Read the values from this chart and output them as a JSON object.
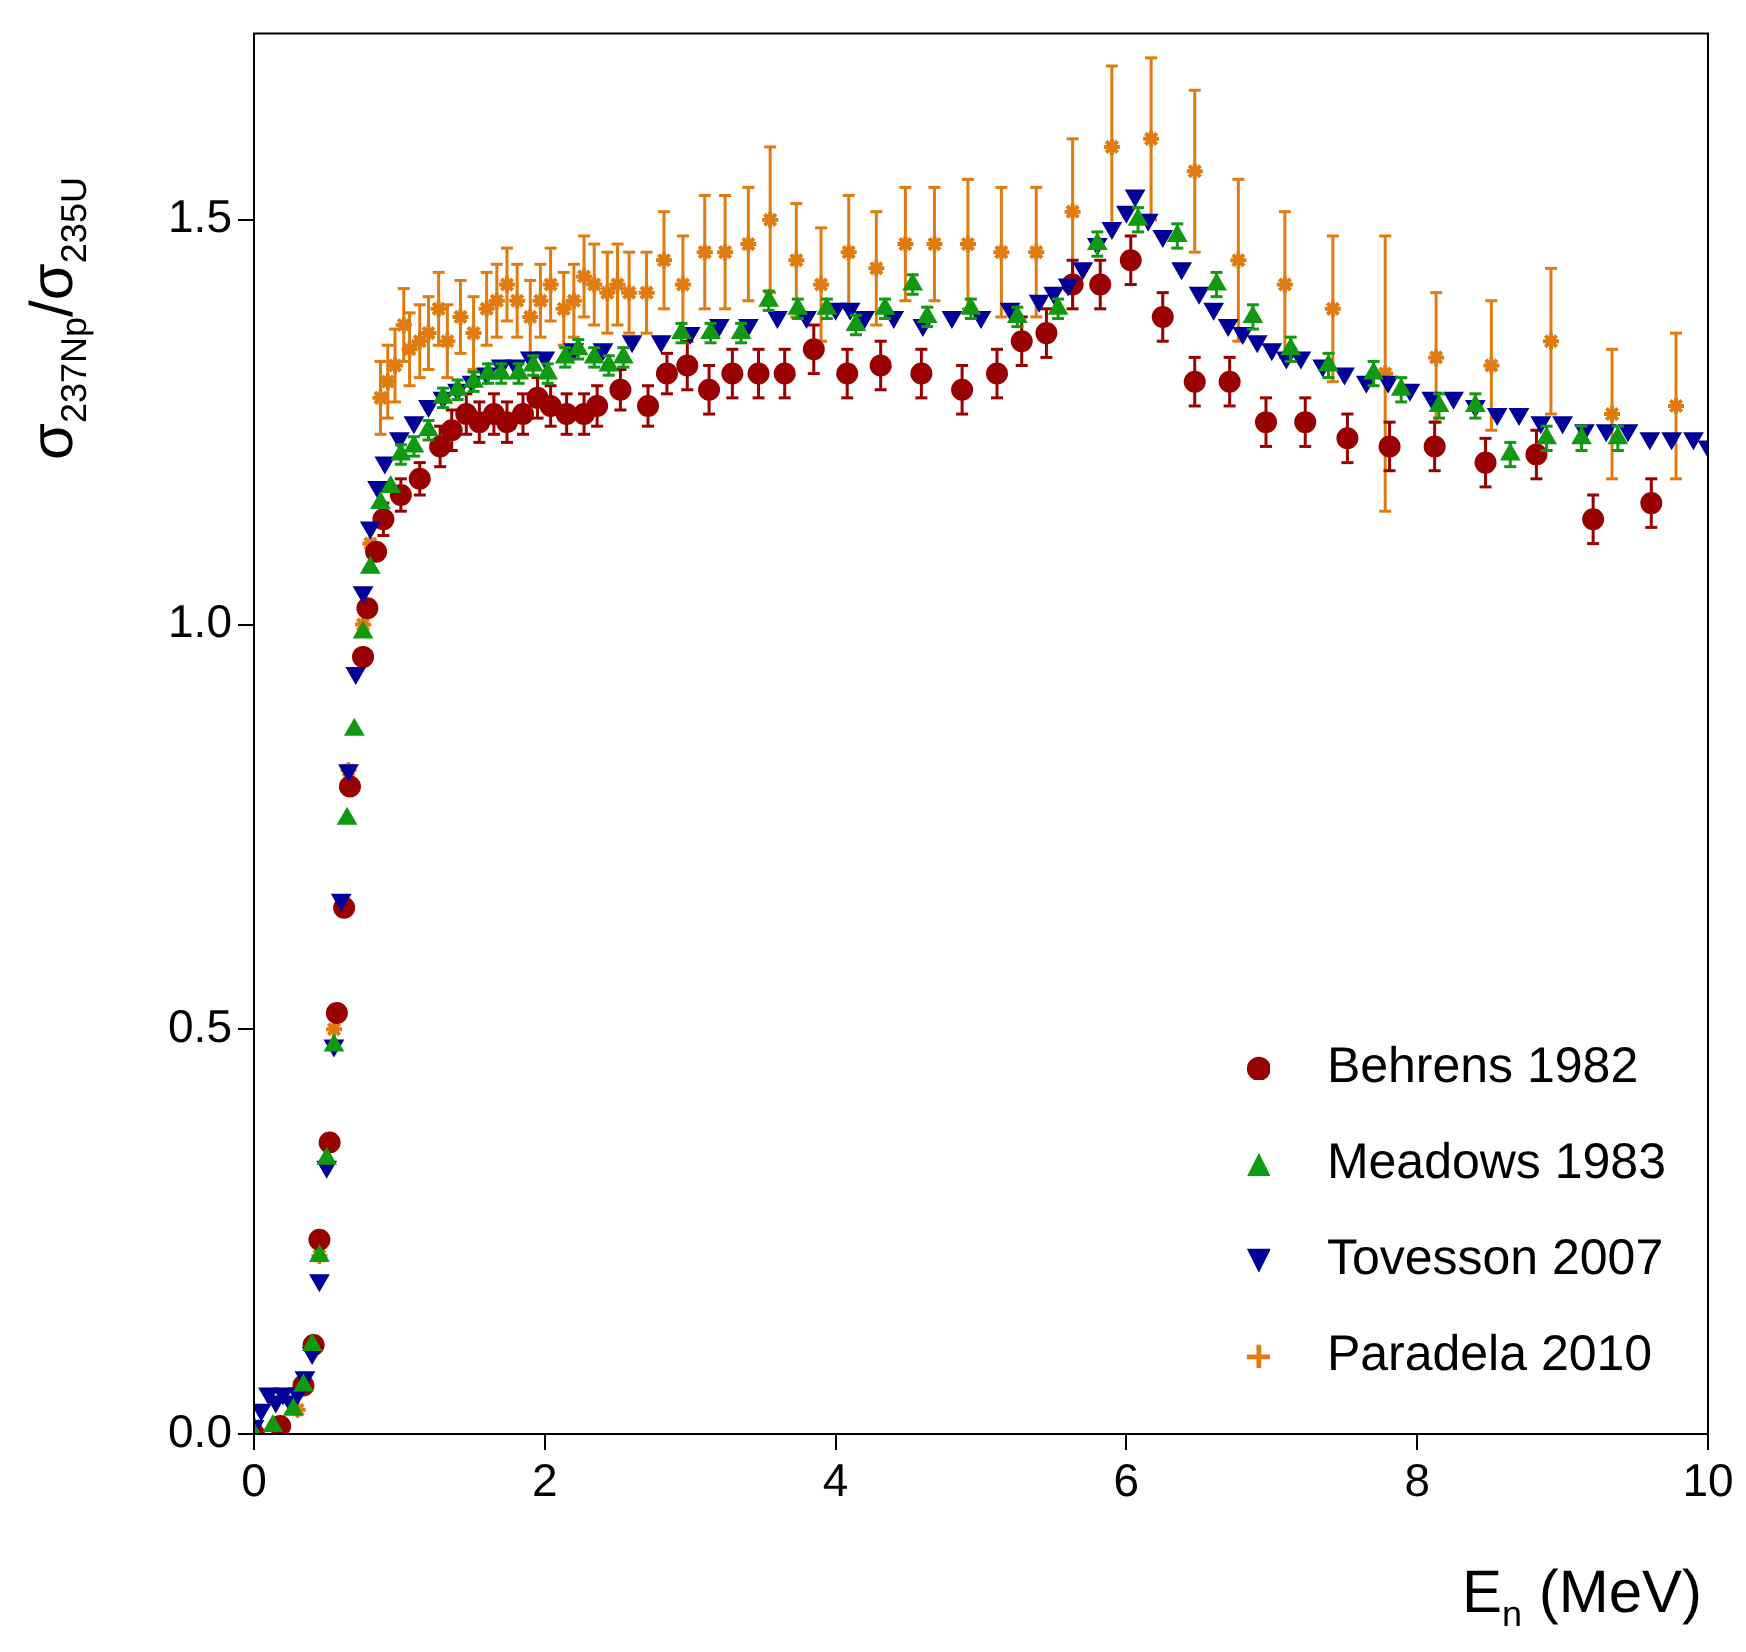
{
  "chart_data": {
    "type": "scatter",
    "xlabel": "E$_{n}$ (MeV)",
    "ylabel": "σ$_{237Np}$/σ$_{235U}$",
    "xlim": [
      0,
      10
    ],
    "xticks": [
      0,
      2,
      4,
      6,
      8,
      10
    ],
    "ylim": [
      0,
      1.73
    ],
    "yticks": [
      {
        "value": 0,
        "label": "0.0"
      },
      {
        "value": 0.5,
        "label": "0.5"
      },
      {
        "value": 1,
        "label": "1.0"
      },
      {
        "value": 1.5,
        "label": "1.5"
      }
    ],
    "grid": false,
    "legend": "bottom right",
    "series": [
      {
        "name": "Behrens 1982",
        "color": "#990000",
        "marker": "circle",
        "x": [
          0,
          0.18,
          0.34,
          0.41,
          0.45,
          0.52,
          0.57,
          0.62,
          0.66,
          0.75,
          0.78,
          0.84,
          0.89,
          1.01,
          1.14,
          1.28,
          1.36,
          1.46,
          1.55,
          1.65,
          1.74,
          1.85,
          1.95,
          2.04,
          2.15,
          2.27,
          2.36,
          2.52,
          2.71,
          2.84,
          2.98,
          3.13,
          3.29,
          3.47,
          3.65,
          3.85,
          4.08,
          4.31,
          4.59,
          4.87,
          5.11,
          5.28,
          5.45,
          5.63,
          5.82,
          6.03,
          6.25,
          6.47,
          6.71,
          6.96,
          7.23,
          7.52,
          7.81,
          8.12,
          8.47,
          8.82,
          9.21,
          9.61
        ],
        "values": [
          0,
          0.01,
          0.06,
          0.11,
          0.24,
          0.36,
          0.52,
          0.65,
          0.8,
          0.96,
          1.02,
          1.09,
          1.13,
          1.16,
          1.18,
          1.22,
          1.24,
          1.26,
          1.25,
          1.26,
          1.25,
          1.26,
          1.28,
          1.27,
          1.26,
          1.26,
          1.27,
          1.29,
          1.27,
          1.31,
          1.32,
          1.29,
          1.31,
          1.31,
          1.31,
          1.34,
          1.31,
          1.32,
          1.31,
          1.29,
          1.31,
          1.35,
          1.36,
          1.42,
          1.42,
          1.45,
          1.38,
          1.3,
          1.3,
          1.25,
          1.25,
          1.23,
          1.22,
          1.22,
          1.2,
          1.21,
          1.13,
          1.15
        ],
        "errors": [
          null,
          null,
          null,
          null,
          null,
          null,
          null,
          null,
          null,
          null,
          null,
          null,
          0.02,
          0.02,
          0.02,
          0.025,
          0.025,
          0.025,
          0.025,
          0.025,
          0.025,
          0.025,
          0.025,
          0.025,
          0.025,
          0.025,
          0.025,
          0.025,
          0.025,
          0.025,
          0.03,
          0.03,
          0.03,
          0.03,
          0.03,
          0.03,
          0.03,
          0.03,
          0.03,
          0.03,
          0.03,
          0.03,
          0.03,
          0.03,
          0.03,
          0.03,
          0.03,
          0.03,
          0.03,
          0.03,
          0.03,
          0.03,
          0.03,
          0.03,
          0.03,
          0.03,
          0.03,
          0.03
        ]
      },
      {
        "name": "Meadows 1983",
        "color": "#119911",
        "marker": "triangle",
        "x": [
          0,
          0.13,
          0.27,
          0.34,
          0.4,
          0.45,
          0.5,
          0.55,
          0.64,
          0.69,
          0.75,
          0.8,
          0.87,
          0.94,
          1.01,
          1.1,
          1.2,
          1.3,
          1.4,
          1.51,
          1.61,
          1.7,
          1.82,
          1.92,
          2.02,
          2.14,
          2.23,
          2.34,
          2.44,
          2.54,
          2.94,
          3.14,
          3.35,
          3.54,
          3.74,
          3.94,
          4.14,
          4.34,
          4.53,
          4.63,
          4.93,
          5.25,
          5.53,
          5.8,
          6.08,
          6.35,
          6.62,
          6.87,
          7.13,
          7.39,
          7.7,
          7.89,
          8.15,
          8.4,
          8.64,
          8.89,
          9.13,
          9.38
        ],
        "values": [
          0,
          0.01,
          0.03,
          0.06,
          0.11,
          0.22,
          0.34,
          0.48,
          0.76,
          0.87,
          0.99,
          1.07,
          1.15,
          1.17,
          1.21,
          1.22,
          1.24,
          1.28,
          1.29,
          1.3,
          1.31,
          1.31,
          1.31,
          1.32,
          1.31,
          1.33,
          1.34,
          1.33,
          1.32,
          1.33,
          1.36,
          1.36,
          1.36,
          1.4,
          1.39,
          1.39,
          1.37,
          1.39,
          1.42,
          1.38,
          1.39,
          1.38,
          1.39,
          1.47,
          1.5,
          1.48,
          1.42,
          1.38,
          1.34,
          1.32,
          1.31,
          1.29,
          1.27,
          1.27,
          1.21,
          1.23,
          1.23,
          1.23
        ],
        "errors": [
          null,
          null,
          null,
          null,
          null,
          null,
          null,
          null,
          null,
          null,
          null,
          null,
          null,
          null,
          0.012,
          0.012,
          0.012,
          0.012,
          0.012,
          0.012,
          0.012,
          0.012,
          0.012,
          0.012,
          0.012,
          0.012,
          0.012,
          0.012,
          0.012,
          0.012,
          0.012,
          0.012,
          0.012,
          0.012,
          0.012,
          0.012,
          0.012,
          0.012,
          0.012,
          0.012,
          0.012,
          0.012,
          0.012,
          0.015,
          0.015,
          0.015,
          0.015,
          0.015,
          0.015,
          0.015,
          0.015,
          0.015,
          0.015,
          0.015,
          0.015,
          0.015,
          0.015,
          0.015
        ]
      },
      {
        "name": "Tovesson 2007",
        "color": "#000099",
        "marker": "triangle-down",
        "x": [
          0,
          0.05,
          0.1,
          0.15,
          0.2,
          0.25,
          0.3,
          0.35,
          0.4,
          0.45,
          0.5,
          0.55,
          0.6,
          0.65,
          0.7,
          0.75,
          0.8,
          0.85,
          0.9,
          1,
          1.1,
          1.2,
          1.3,
          1.4,
          1.5,
          1.6,
          1.7,
          1.8,
          1.9,
          2,
          2.2,
          2.4,
          2.6,
          2.8,
          3,
          3.2,
          3.4,
          3.6,
          3.8,
          4,
          4.1,
          4.2,
          4.4,
          4.6,
          4.8,
          5,
          5.2,
          5.4,
          5.5,
          5.6,
          5.7,
          5.8,
          5.9,
          6,
          6.06,
          6.15,
          6.25,
          6.38,
          6.5,
          6.6,
          6.7,
          6.8,
          6.9,
          7,
          7.1,
          7.2,
          7.35,
          7.5,
          7.65,
          7.8,
          7.95,
          8.1,
          8.25,
          8.4,
          8.55,
          8.7,
          8.85,
          9,
          9.15,
          9.3,
          9.45,
          9.6,
          9.75,
          9.9,
          10
        ],
        "values": [
          0.01,
          0.03,
          0.05,
          0.04,
          0.05,
          0.04,
          0.05,
          0.07,
          0.1,
          0.19,
          0.33,
          0.48,
          0.66,
          0.82,
          0.94,
          1.04,
          1.12,
          1.17,
          1.2,
          1.23,
          1.25,
          1.27,
          1.28,
          1.29,
          1.3,
          1.31,
          1.32,
          1.32,
          1.33,
          1.33,
          1.34,
          1.34,
          1.35,
          1.35,
          1.36,
          1.37,
          1.37,
          1.38,
          1.38,
          1.39,
          1.39,
          1.38,
          1.38,
          1.37,
          1.38,
          1.38,
          1.39,
          1.4,
          1.41,
          1.42,
          1.44,
          1.47,
          1.49,
          1.51,
          1.53,
          1.5,
          1.48,
          1.44,
          1.41,
          1.39,
          1.37,
          1.36,
          1.35,
          1.34,
          1.33,
          1.33,
          1.32,
          1.31,
          1.3,
          1.3,
          1.29,
          1.28,
          1.28,
          1.27,
          1.26,
          1.26,
          1.25,
          1.25,
          1.24,
          1.24,
          1.24,
          1.23,
          1.23,
          1.23,
          1.22
        ]
      },
      {
        "name": "Paradela 2010",
        "color": "#e07b10",
        "marker": "cross",
        "x": [
          0,
          0.3,
          0.45,
          0.55,
          0.65,
          0.75,
          0.8,
          0.87,
          0.92,
          0.97,
          1.03,
          1.07,
          1.14,
          1.2,
          1.27,
          1.33,
          1.42,
          1.51,
          1.6,
          1.67,
          1.74,
          1.81,
          1.9,
          1.97,
          2.04,
          2.13,
          2.2,
          2.27,
          2.34,
          2.43,
          2.5,
          2.58,
          2.7,
          2.82,
          2.95,
          3.1,
          3.24,
          3.4,
          3.55,
          3.73,
          3.9,
          4.09,
          4.28,
          4.48,
          4.68,
          4.91,
          5.14,
          5.38,
          5.63,
          5.9,
          6.17,
          6.47,
          6.77,
          7.09,
          7.42,
          7.78,
          8.13,
          8.51,
          8.92,
          9.34,
          9.78
        ],
        "values": [
          0.01,
          0.03,
          0.22,
          0.5,
          0.82,
          1,
          1.1,
          1.28,
          1.3,
          1.32,
          1.37,
          1.34,
          1.35,
          1.36,
          1.39,
          1.35,
          1.38,
          1.36,
          1.39,
          1.4,
          1.42,
          1.4,
          1.38,
          1.4,
          1.42,
          1.39,
          1.4,
          1.43,
          1.42,
          1.41,
          1.42,
          1.41,
          1.41,
          1.45,
          1.42,
          1.46,
          1.46,
          1.47,
          1.5,
          1.45,
          1.42,
          1.46,
          1.44,
          1.47,
          1.47,
          1.47,
          1.46,
          1.46,
          1.51,
          1.59,
          1.6,
          1.56,
          1.45,
          1.42,
          1.39,
          1.31,
          1.33,
          1.32,
          1.35,
          1.26,
          1.27
        ],
        "errors": [
          null,
          null,
          null,
          null,
          null,
          null,
          null,
          0.045,
          0.045,
          0.045,
          0.045,
          0.045,
          0.045,
          0.045,
          0.045,
          0.045,
          0.045,
          0.045,
          0.045,
          0.045,
          0.045,
          0.045,
          0.045,
          0.045,
          0.045,
          0.045,
          0.045,
          0.05,
          0.05,
          0.05,
          0.05,
          0.05,
          0.05,
          0.06,
          0.06,
          0.07,
          0.07,
          0.07,
          0.09,
          0.07,
          0.07,
          0.07,
          0.07,
          0.07,
          0.07,
          0.08,
          0.08,
          0.08,
          0.09,
          0.1,
          0.1,
          0.1,
          0.1,
          0.09,
          0.09,
          0.17,
          0.08,
          0.08,
          0.09,
          0.08,
          0.09
        ]
      }
    ]
  }
}
